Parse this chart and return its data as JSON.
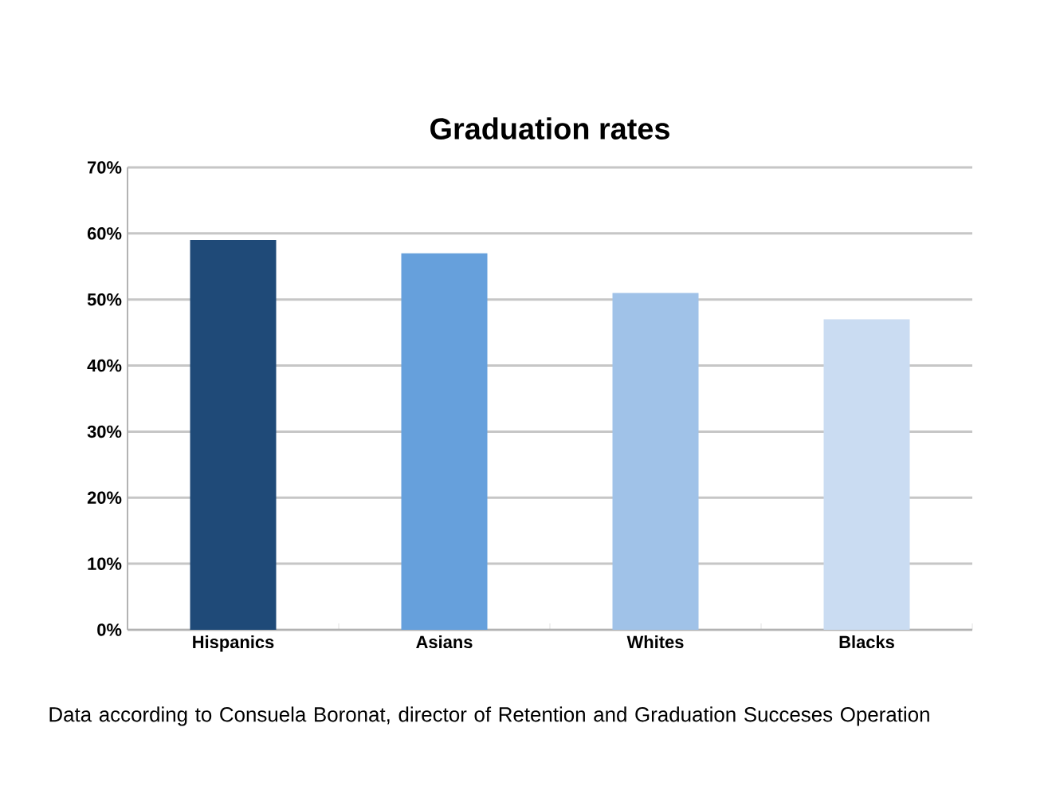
{
  "chart_data": {
    "type": "bar",
    "title": "Graduation rates",
    "categories": [
      "Hispanics",
      "Asians",
      "Whites",
      "Blacks"
    ],
    "values": [
      59,
      57,
      51,
      47
    ],
    "colors": [
      "#1f4a78",
      "#66a0dc",
      "#a0c2e8",
      "#cadcf2"
    ],
    "ylim": [
      0,
      70
    ],
    "yticks": [
      {
        "value": 0,
        "label": "0%"
      },
      {
        "value": 10,
        "label": "10%"
      },
      {
        "value": 20,
        "label": "20%"
      },
      {
        "value": 30,
        "label": "30%"
      },
      {
        "value": 40,
        "label": "40%"
      },
      {
        "value": 50,
        "label": "50%"
      },
      {
        "value": 60,
        "label": "60%"
      },
      {
        "value": 70,
        "label": "70%"
      }
    ],
    "grid": "y",
    "annotations": [
      "Data according to Consuela Boronat, director of Retention and Graduation Succeses Operation"
    ]
  }
}
